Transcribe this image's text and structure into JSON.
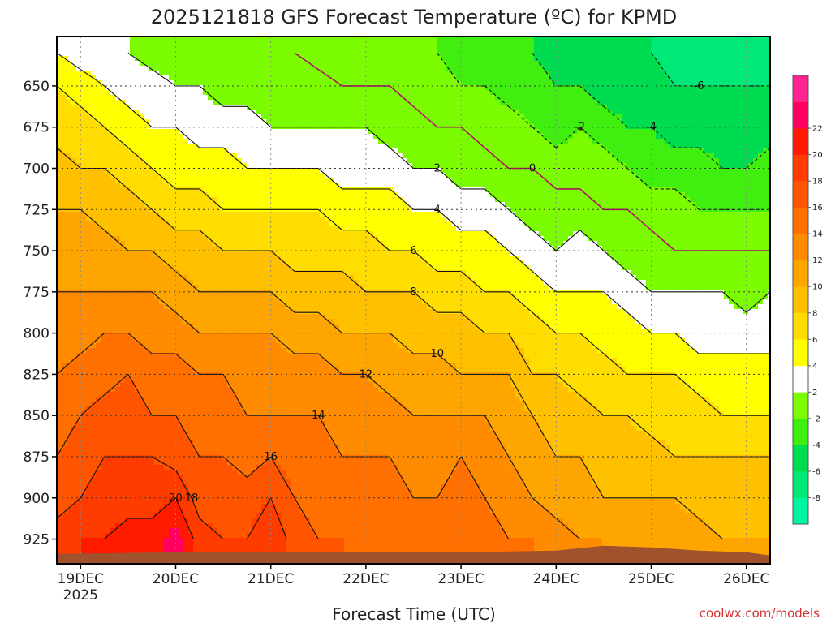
{
  "chart_data": {
    "type": "heatmap",
    "title": "2025121818 GFS Forecast Temperature (ºC) for KPMD",
    "xlabel": "Forecast Time (UTC)",
    "ylabel": "",
    "credit": "coolwx.com/models",
    "x_ticks": [
      "19DEC",
      "20DEC",
      "21DEC",
      "22DEC",
      "23DEC",
      "24DEC",
      "25DEC",
      "26DEC"
    ],
    "x_tick_sub": "2025",
    "x_range_days": [
      18.75,
      26.25
    ],
    "y_ticks": [
      650,
      675,
      700,
      725,
      750,
      775,
      800,
      825,
      850,
      875,
      900,
      925
    ],
    "y_range_hpa": [
      620,
      940
    ],
    "y_scale": "pressure (inverted)",
    "grid": true,
    "colorbar": {
      "levels": [
        -10,
        -8,
        -6,
        -4,
        -2,
        2,
        4,
        6,
        8,
        10,
        12,
        14,
        16,
        18,
        20,
        22,
        24
      ],
      "tick_labels": [
        "-8",
        "-6",
        "-4",
        "-2",
        "2",
        "4",
        "6",
        "8",
        "10",
        "12",
        "14",
        "16",
        "18",
        "20",
        "22"
      ],
      "colors": [
        "#00f5a0",
        "#00e878",
        "#00dc50",
        "#40ee10",
        "#7cfc00",
        "#ffffff",
        "#ffff00",
        "#ffdd00",
        "#ffc000",
        "#ffa500",
        "#ff8c00",
        "#ff7000",
        "#ff5400",
        "#ff3c00",
        "#ff1a00",
        "#ff0060",
        "#ff2590"
      ]
    },
    "contour_levels": [
      -6,
      -4,
      -2,
      0,
      2,
      4,
      6,
      8,
      10,
      12,
      14,
      16,
      18,
      20
    ],
    "series": [
      {
        "day": 18.75,
        "values": [
          4,
          6,
          7,
          9,
          10,
          11,
          12,
          13,
          14,
          15,
          16,
          17,
          19
        ]
      },
      {
        "day": 19.0,
        "values": [
          3,
          5,
          7,
          8,
          10,
          11,
          12,
          13,
          15,
          16,
          17,
          18,
          20
        ]
      },
      {
        "day": 19.25,
        "values": [
          3,
          4,
          6,
          8,
          9,
          11,
          12,
          14,
          15,
          17,
          18,
          19,
          20
        ]
      },
      {
        "day": 19.5,
        "values": [
          2,
          3,
          5,
          7,
          9,
          10,
          12,
          14,
          16,
          17,
          18,
          19,
          21
        ]
      },
      {
        "day": 19.75,
        "values": [
          1,
          3,
          4,
          6,
          8,
          10,
          12,
          13,
          15,
          16,
          18,
          19,
          21
        ]
      },
      {
        "day": 20.0,
        "values": [
          1,
          2,
          4,
          5,
          7,
          9,
          11,
          13,
          15,
          16,
          17,
          20,
          23
        ]
      },
      {
        "day": 20.25,
        "values": [
          0,
          2,
          3,
          5,
          7,
          9,
          10,
          12,
          14,
          15,
          16,
          17,
          19
        ]
      },
      {
        "day": 20.5,
        "values": [
          0,
          1,
          3,
          5,
          6,
          8,
          10,
          12,
          14,
          15,
          16,
          17,
          18
        ]
      },
      {
        "day": 20.75,
        "values": [
          0,
          1,
          3,
          4,
          6,
          8,
          10,
          12,
          13,
          14,
          15,
          17,
          18
        ]
      },
      {
        "day": 21.0,
        "values": [
          0,
          1,
          2,
          4,
          6,
          8,
          10,
          12,
          13,
          14,
          16,
          18,
          20
        ]
      },
      {
        "day": 21.25,
        "values": [
          0,
          1,
          2,
          4,
          6,
          7,
          9,
          11,
          13,
          14,
          15,
          16,
          17
        ]
      },
      {
        "day": 21.5,
        "values": [
          -1,
          1,
          2,
          4,
          6,
          7,
          9,
          11,
          13,
          14,
          15,
          15,
          16
        ]
      },
      {
        "day": 21.75,
        "values": [
          -1,
          0,
          2,
          3,
          5,
          7,
          9,
          10,
          12,
          13,
          14,
          15,
          16
        ]
      },
      {
        "day": 22.0,
        "values": [
          -1,
          0,
          2,
          3,
          5,
          7,
          8,
          10,
          12,
          13,
          14,
          14,
          15
        ]
      },
      {
        "day": 22.25,
        "values": [
          -1,
          0,
          1,
          3,
          5,
          6,
          8,
          10,
          11,
          13,
          14,
          15,
          16
        ]
      },
      {
        "day": 22.5,
        "values": [
          -2,
          -1,
          1,
          2,
          4,
          6,
          8,
          9,
          11,
          12,
          13,
          14,
          15
        ]
      },
      {
        "day": 22.75,
        "values": [
          -2,
          -1,
          0,
          2,
          4,
          5,
          7,
          9,
          11,
          12,
          13,
          14,
          15
        ]
      },
      {
        "day": 23.0,
        "values": [
          -3,
          -2,
          0,
          1,
          3,
          5,
          7,
          9,
          10,
          12,
          14,
          15,
          16
        ]
      },
      {
        "day": 23.25,
        "values": [
          -3,
          -2,
          -1,
          1,
          3,
          5,
          6,
          8,
          10,
          12,
          13,
          14,
          15
        ]
      },
      {
        "day": 23.5,
        "values": [
          -4,
          -3,
          -1,
          0,
          2,
          4,
          6,
          8,
          10,
          11,
          12,
          13,
          14
        ]
      },
      {
        "day": 23.75,
        "values": [
          -4,
          -3,
          -2,
          0,
          1,
          3,
          5,
          7,
          8,
          10,
          11,
          12,
          14
        ]
      },
      {
        "day": 24.0,
        "values": [
          -5,
          -4,
          -3,
          -1,
          1,
          2,
          4,
          6,
          8,
          9,
          10,
          11,
          13
        ]
      },
      {
        "day": 24.25,
        "values": [
          -5,
          -4,
          -2,
          -1,
          1,
          3,
          4,
          6,
          7,
          9,
          10,
          11,
          12
        ]
      },
      {
        "day": 24.5,
        "values": [
          -6,
          -5,
          -3,
          -1,
          0,
          2,
          4,
          5,
          7,
          8,
          9,
          10,
          12
        ]
      },
      {
        "day": 24.75,
        "values": [
          -6,
          -5,
          -4,
          -2,
          0,
          1,
          3,
          5,
          6,
          8,
          9,
          10,
          11
        ]
      },
      {
        "day": 25.0,
        "values": [
          -6,
          -5,
          -4,
          -3,
          -1,
          1,
          2,
          4,
          6,
          7,
          9,
          10,
          11
        ]
      },
      {
        "day": 25.25,
        "values": [
          -7,
          -6,
          -5,
          -3,
          -1,
          0,
          2,
          4,
          6,
          7,
          8,
          10,
          11
        ]
      },
      {
        "day": 25.5,
        "values": [
          -7,
          -6,
          -5,
          -3,
          -2,
          0,
          2,
          3,
          5,
          7,
          8,
          9,
          11
        ]
      },
      {
        "day": 25.75,
        "values": [
          -7,
          -6,
          -5,
          -4,
          -2,
          0,
          2,
          3,
          5,
          6,
          8,
          9,
          10
        ]
      },
      {
        "day": 26.0,
        "values": [
          -7,
          -6,
          -5,
          -4,
          -2,
          0,
          1,
          3,
          5,
          6,
          8,
          9,
          10
        ]
      },
      {
        "day": 26.25,
        "values": [
          -7,
          -6,
          -5,
          -3,
          -2,
          0,
          2,
          3,
          5,
          6,
          8,
          9,
          10
        ]
      }
    ],
    "series_levels_hpa": [
      630,
      650,
      675,
      700,
      725,
      750,
      775,
      800,
      825,
      850,
      875,
      900,
      925
    ],
    "surface_pressure_hpa": [
      {
        "day": 18.75,
        "p": 934
      },
      {
        "day": 20.0,
        "p": 933
      },
      {
        "day": 21.0,
        "p": 933
      },
      {
        "day": 22.0,
        "p": 933
      },
      {
        "day": 23.0,
        "p": 933
      },
      {
        "day": 24.0,
        "p": 932
      },
      {
        "day": 24.5,
        "p": 929
      },
      {
        "day": 25.0,
        "p": 930
      },
      {
        "day": 25.5,
        "p": 932
      },
      {
        "day": 26.0,
        "p": 933
      },
      {
        "day": 26.25,
        "p": 935
      }
    ],
    "ground_color": "#a0522d",
    "credit_color": "#d03030"
  }
}
